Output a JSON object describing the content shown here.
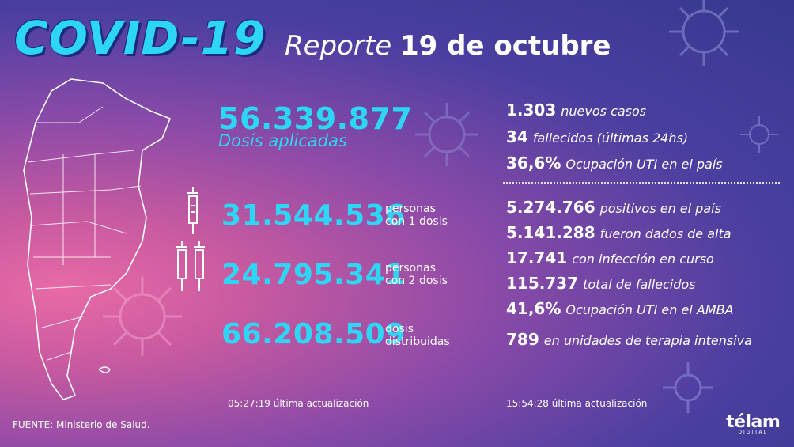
{
  "header": {
    "title": "COVID-19",
    "report_word": "Reporte",
    "date": "19 de octubre"
  },
  "vaccination": {
    "total_doses": "56.339.877",
    "total_doses_label": "Dosis aplicadas",
    "one_dose": "31.544.536",
    "one_dose_label_1": "personas",
    "one_dose_label_2": "con 1 dosis",
    "two_doses": "24.795.341",
    "two_doses_label_1": "personas",
    "two_doses_label_2": "con 2 dosis",
    "distributed": "66.208.509",
    "distributed_label_1": "dosis",
    "distributed_label_2": "distribuidas",
    "update_time": "05:27:19",
    "update_label": "última actualización"
  },
  "daily": [
    {
      "value": "1.303",
      "text": "nuevos casos"
    },
    {
      "value": "34",
      "text": "fallecidos (últimas 24hs)"
    },
    {
      "value": "36,6%",
      "text": "Ocupación UTI en el país"
    }
  ],
  "totals": [
    {
      "value": "5.274.766",
      "text": "positivos en el país"
    },
    {
      "value": "5.141.288",
      "text": "fueron dados de alta"
    },
    {
      "value": "17.741",
      "text": "con infección en curso"
    },
    {
      "value": "115.737",
      "text": "total de fallecidos"
    },
    {
      "value": "41,6%",
      "text": "Ocupación UTI en el AMBA"
    },
    {
      "value": "789",
      "text": "en unidades de terapia intensiva"
    }
  ],
  "cases_update": {
    "time": "15:54:28",
    "label": "última actualización"
  },
  "source": "FUENTE: Ministerio de Salud.",
  "logo": {
    "main": "télam",
    "sub": "DIGITAL"
  },
  "icons": [
    "argentina-map-icon",
    "syringe-icon",
    "virus-icon"
  ],
  "colors": {
    "accent": "#2ed6f5",
    "bg_dark": "#36388f",
    "bg_pink": "#e86aa6"
  }
}
